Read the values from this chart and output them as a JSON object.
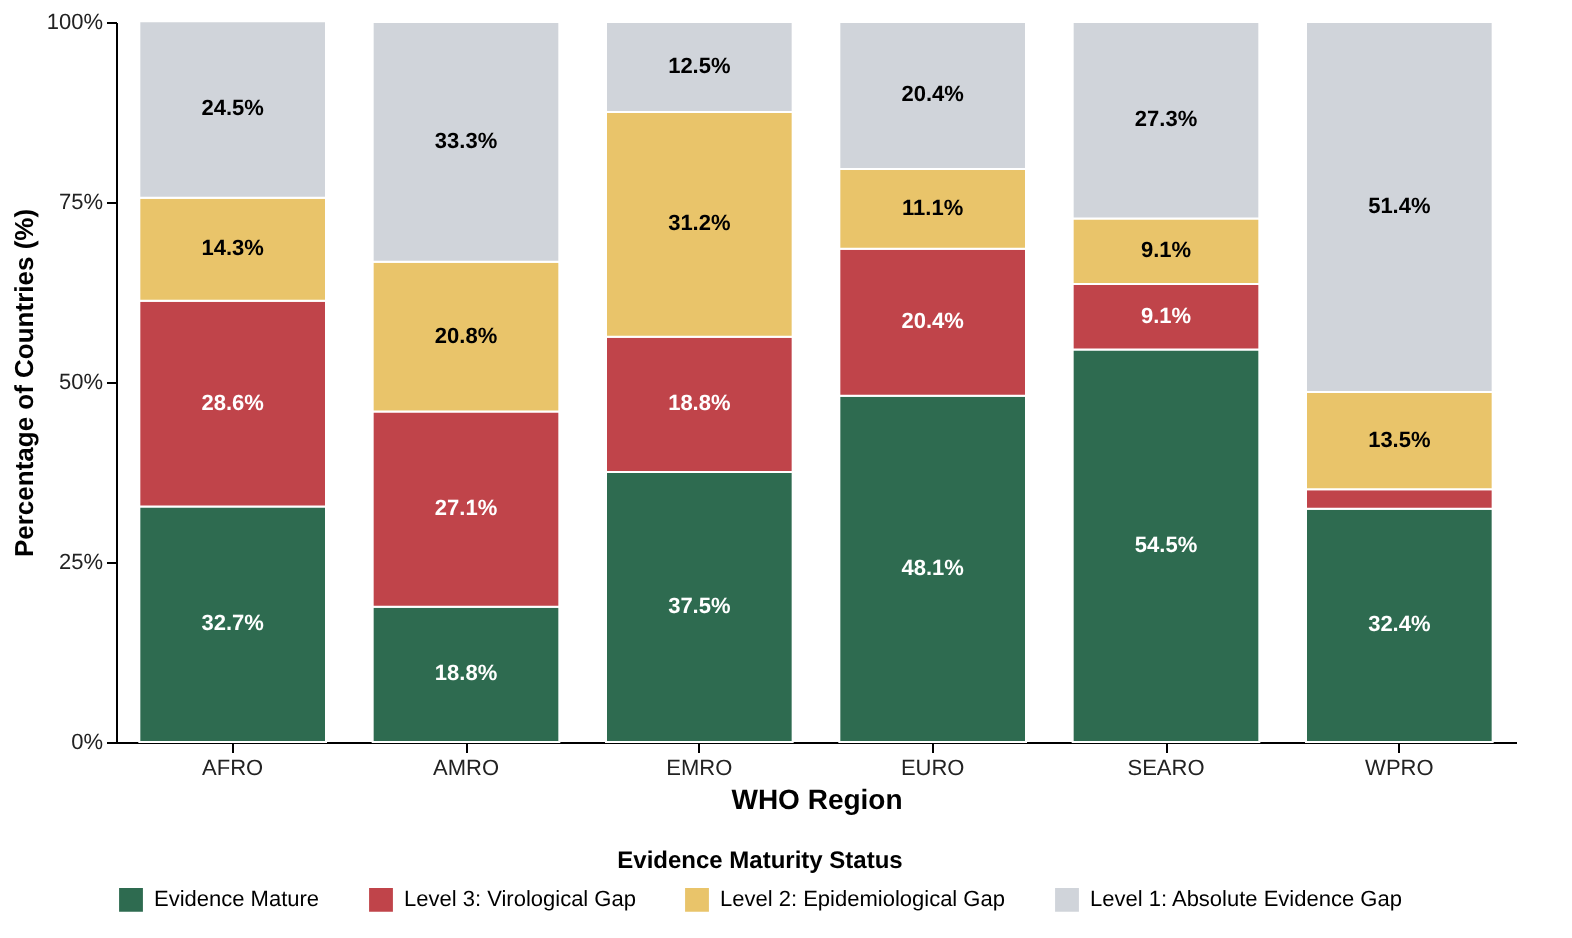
{
  "chart_data": {
    "type": "bar",
    "stacked": true,
    "xlabel": "WHO Region",
    "ylabel": "Percentage of Countries (%)",
    "legend_title": "Evidence Maturity Status",
    "legend": "bottom",
    "grid": false,
    "categories": [
      "AFRO",
      "AMRO",
      "EMRO",
      "EURO",
      "SEARO",
      "WPRO"
    ],
    "ylim": [
      0,
      100
    ],
    "yticks": [
      {
        "value": 0,
        "label": "0%"
      },
      {
        "value": 25,
        "label": "25%"
      },
      {
        "value": 50,
        "label": "50%"
      },
      {
        "value": 75,
        "label": "75%"
      },
      {
        "value": 100,
        "label": "100%"
      }
    ],
    "series": [
      {
        "name": "Evidence Mature",
        "color": "#2e6b50",
        "values": [
          32.7,
          18.8,
          37.5,
          48.1,
          54.5,
          32.4
        ],
        "value_labels": [
          "32.7%",
          "18.8%",
          "37.5%",
          "48.1%",
          "54.5%",
          "32.4%"
        ]
      },
      {
        "name": "Level 3: Virological Gap",
        "color": "#c0444a",
        "values": [
          28.6,
          27.1,
          18.8,
          20.4,
          9.1,
          2.7
        ],
        "value_labels": [
          "28.6%",
          "27.1%",
          "18.8%",
          "20.4%",
          "9.1%",
          null
        ]
      },
      {
        "name": "Level 2: Epidemiological Gap",
        "color": "#e9c46a",
        "values": [
          14.3,
          20.8,
          31.2,
          11.1,
          9.1,
          13.5
        ],
        "value_labels": [
          "14.3%",
          "20.8%",
          "31.2%",
          "11.1%",
          "9.1%",
          "13.5%"
        ]
      },
      {
        "name": "Level 1: Absolute Evidence Gap",
        "color": "#d0d4da",
        "values": [
          24.5,
          33.3,
          12.5,
          20.4,
          27.3,
          51.4
        ],
        "value_labels": [
          "24.5%",
          "33.3%",
          "12.5%",
          "20.4%",
          "27.3%",
          "51.4%"
        ]
      }
    ]
  }
}
